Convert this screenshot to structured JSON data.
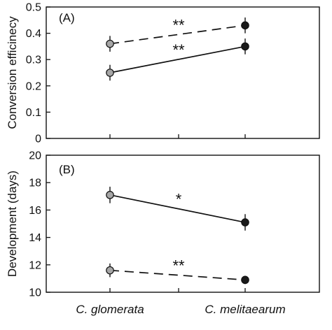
{
  "chart_data": [
    {
      "type": "line",
      "panel_label": "(A)",
      "ylabel": "Conversion efficinecy",
      "categories": [
        "C. glomerata",
        "C. melitaearum"
      ],
      "ylim": [
        0,
        0.5
      ],
      "yticks": [
        "0",
        "0.1",
        "0.2",
        "0.3",
        "0.4",
        "0.5"
      ],
      "series": [
        {
          "line_style": "dashed",
          "values": [
            0.36,
            0.43
          ],
          "errors": [
            0.03,
            0.03
          ],
          "significance": "**"
        },
        {
          "line_style": "solid",
          "values": [
            0.25,
            0.35
          ],
          "errors": [
            0.03,
            0.03
          ],
          "significance": "**"
        }
      ],
      "point_colors": [
        "#a6a6a6",
        "#1a1a1a"
      ]
    },
    {
      "type": "line",
      "panel_label": "(B)",
      "ylabel": "Development (days)",
      "categories": [
        "C. glomerata",
        "C. melitaearum"
      ],
      "ylim": [
        10,
        20
      ],
      "yticks": [
        "10",
        "12",
        "14",
        "16",
        "18",
        "20"
      ],
      "series": [
        {
          "line_style": "solid",
          "values": [
            17.1,
            15.1
          ],
          "errors": [
            0.6,
            0.6
          ],
          "significance": "*"
        },
        {
          "line_style": "dashed",
          "values": [
            11.6,
            10.9
          ],
          "errors": [
            0.5,
            0.3
          ],
          "significance": "**"
        }
      ],
      "point_colors": [
        "#a6a6a6",
        "#1a1a1a"
      ]
    }
  ]
}
